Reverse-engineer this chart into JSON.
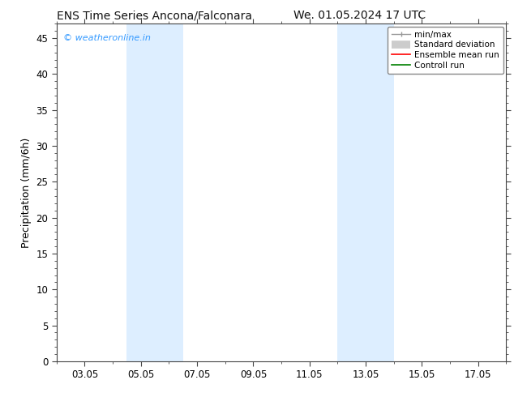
{
  "title_left": "ENS Time Series Ancona/Falconara",
  "title_right": "We. 01.05.2024 17 UTC",
  "ylabel": "Precipitation (mm/6h)",
  "watermark": "© weatheronline.in",
  "watermark_color": "#3399ff",
  "xtick_labels": [
    "03.05",
    "05.05",
    "07.05",
    "09.05",
    "11.05",
    "13.05",
    "15.05",
    "17.05"
  ],
  "xtick_positions": [
    2,
    4,
    6,
    8,
    10,
    12,
    14,
    16
  ],
  "xlim": [
    1,
    17
  ],
  "ylim": [
    0,
    47
  ],
  "yticks": [
    0,
    5,
    10,
    15,
    20,
    25,
    30,
    35,
    40,
    45
  ],
  "shade_bands": [
    {
      "xmin": 3.5,
      "xmax": 5.5,
      "color": "#ddeeff"
    },
    {
      "xmin": 11.0,
      "xmax": 13.0,
      "color": "#ddeeff"
    }
  ],
  "legend_entries": [
    {
      "label": "min/max",
      "color": "#aaaaaa"
    },
    {
      "label": "Standard deviation",
      "color": "#cccccc"
    },
    {
      "label": "Ensemble mean run",
      "color": "#ff0000"
    },
    {
      "label": "Controll run",
      "color": "#008000"
    }
  ],
  "bg_color": "#ffffff",
  "plot_bg_color": "#ffffff",
  "spine_color": "#444444",
  "title_fontsize": 10,
  "tick_fontsize": 8.5,
  "ylabel_fontsize": 9,
  "legend_fontsize": 7.5
}
